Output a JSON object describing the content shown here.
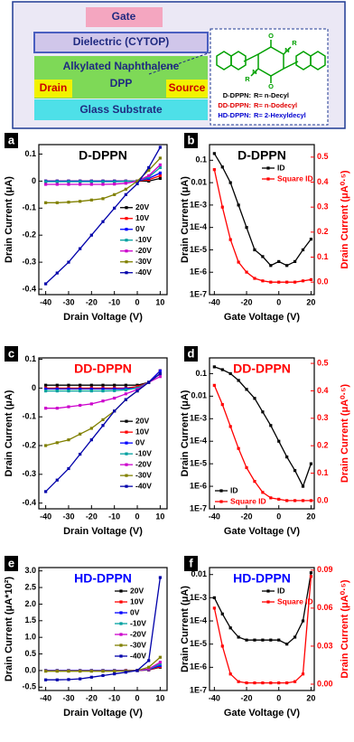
{
  "diagram": {
    "gate": "Gate",
    "dielectric": "Dielectric (CYTOP)",
    "semiconductor_1": "Alkylated Naphthalene",
    "semiconductor_2": "DPP",
    "drain": "Drain",
    "source": "Source",
    "substrate": "Glass Substrate",
    "atoms": {
      "o_top": "O",
      "o_bottom": "O",
      "n_top": "N",
      "n_bottom": "N",
      "r_top": "R",
      "r_bottom": "R"
    },
    "key": [
      {
        "name": "D-DPPN:",
        "r": "R= n-Decyl"
      },
      {
        "name": "DD-DPPN:",
        "r": "R= n-Dodecyl"
      },
      {
        "name": "HD-DPPN:",
        "r": "R= 2-Hexyldecyl"
      }
    ]
  },
  "chart_data": [
    {
      "type": "line",
      "label": "a",
      "title": "D-DPPN",
      "title_color": "#000000",
      "xlabel": "Drain Voltage (V)",
      "ylabel": "Drain Current (μA)",
      "x": [
        -40,
        -35,
        -30,
        -25,
        -20,
        -15,
        -10,
        -5,
        0,
        5,
        10
      ],
      "xlim": [
        -43,
        13
      ],
      "xticks": [
        -40,
        -30,
        -20,
        -10,
        0,
        10
      ],
      "ylim": [
        -0.42,
        0.135
      ],
      "yticks": [
        -0.4,
        -0.3,
        -0.2,
        -0.1,
        0.0,
        0.1
      ],
      "legend": "right",
      "series": [
        {
          "name": "20V",
          "color": "#000000",
          "values": [
            0,
            0,
            0,
            0,
            0,
            0,
            0,
            0,
            0,
            0,
            0.01
          ]
        },
        {
          "name": "10V",
          "color": "#ff0000",
          "values": [
            0,
            0,
            0,
            0,
            0,
            0,
            0,
            0,
            0,
            0.005,
            0.02
          ]
        },
        {
          "name": "0V",
          "color": "#0000ff",
          "values": [
            0,
            0,
            0,
            0,
            0,
            0,
            0,
            0,
            0,
            0.01,
            0.03
          ]
        },
        {
          "name": "-10V",
          "color": "#00a0a0",
          "values": [
            -0.002,
            -0.002,
            -0.002,
            -0.002,
            -0.002,
            -0.002,
            -0.002,
            -0.001,
            0,
            0.015,
            0.05
          ]
        },
        {
          "name": "-20V",
          "color": "#cc00cc",
          "values": [
            -0.012,
            -0.012,
            -0.012,
            -0.012,
            -0.012,
            -0.012,
            -0.011,
            -0.008,
            0,
            0.02,
            0.06
          ]
        },
        {
          "name": "-30V",
          "color": "#808000",
          "values": [
            -0.08,
            -0.08,
            -0.078,
            -0.075,
            -0.07,
            -0.065,
            -0.05,
            -0.03,
            0,
            0.04,
            0.085
          ]
        },
        {
          "name": "-40V",
          "color": "#0000aa",
          "values": [
            -0.38,
            -0.34,
            -0.3,
            -0.25,
            -0.2,
            -0.15,
            -0.1,
            -0.05,
            -0.01,
            0.05,
            0.125
          ]
        }
      ]
    },
    {
      "type": "line",
      "label": "b",
      "title": "D-DPPN",
      "title_color": "#000000",
      "xlabel": "Gate Voltage (V)",
      "ylabel": "Drain Current (μA)",
      "y2label": "Drain Current (μA⁰·⁵)",
      "x": [
        -40,
        -35,
        -30,
        -25,
        -20,
        -15,
        -10,
        -5,
        0,
        5,
        10,
        15,
        20
      ],
      "xlim": [
        -43,
        22
      ],
      "xticks": [
        -40,
        -20,
        0,
        20
      ],
      "ylog": true,
      "ylim": [
        1e-07,
        0.5
      ],
      "yticks": [
        {
          "value": 1e-07,
          "label": "1E-7"
        },
        {
          "value": 1e-06,
          "label": "1E-6"
        },
        {
          "value": 1e-05,
          "label": "1E-5"
        },
        {
          "value": 0.0001,
          "label": "1E-4"
        },
        {
          "value": 0.001,
          "label": "1E-3"
        },
        0.01,
        0.1
      ],
      "y2lim": [
        -0.05,
        0.55
      ],
      "y2ticks": [
        {
          "value": 0,
          "label": "0.0"
        },
        0.1,
        0.2,
        0.3,
        0.4,
        0.5
      ],
      "legend": "top-right",
      "series": [
        {
          "name": "ID",
          "color": "#000000",
          "values": [
            0.2,
            0.05,
            0.01,
            0.001,
            0.0001,
            1e-05,
            5e-06,
            2e-06,
            3e-06,
            2e-06,
            3e-06,
            1e-05,
            3e-05
          ]
        },
        {
          "name": "Square ID",
          "color": "#ff0000",
          "axis": "y2",
          "values": [
            0.45,
            0.3,
            0.17,
            0.08,
            0.04,
            0.015,
            0.005,
            0,
            0,
            0,
            0,
            0.005,
            0.01
          ]
        }
      ]
    },
    {
      "type": "line",
      "label": "c",
      "title": "DD-DPPN",
      "title_color": "#ff0000",
      "xlabel": "Drain Voltage (V)",
      "ylabel": "Drain Current (μA)",
      "x": [
        -40,
        -35,
        -30,
        -25,
        -20,
        -15,
        -10,
        -5,
        0,
        5,
        10
      ],
      "xlim": [
        -43,
        13
      ],
      "xticks": [
        -40,
        -30,
        -20,
        -10,
        0,
        10
      ],
      "ylim": [
        -0.42,
        0.105
      ],
      "yticks": [
        -0.4,
        -0.3,
        -0.2,
        -0.1,
        0.0,
        0.1
      ],
      "legend": "right",
      "series": [
        {
          "name": "20V",
          "color": "#000000",
          "values": [
            0.01,
            0.01,
            0.01,
            0.01,
            0.01,
            0.01,
            0.01,
            0.01,
            0.01,
            0.02,
            0.06
          ]
        },
        {
          "name": "10V",
          "color": "#ff0000",
          "values": [
            0,
            0,
            0,
            0,
            0,
            0,
            0,
            0,
            0.005,
            0.02,
            0.06
          ]
        },
        {
          "name": "0V",
          "color": "#0000ff",
          "values": [
            -0.003,
            -0.003,
            -0.003,
            -0.003,
            -0.003,
            -0.003,
            -0.003,
            -0.002,
            0,
            0.02,
            0.06
          ]
        },
        {
          "name": "-10V",
          "color": "#00a0a0",
          "values": [
            -0.01,
            -0.01,
            -0.01,
            -0.01,
            -0.01,
            -0.01,
            -0.009,
            -0.006,
            0,
            0.02,
            0.05
          ]
        },
        {
          "name": "-20V",
          "color": "#cc00cc",
          "values": [
            -0.07,
            -0.07,
            -0.065,
            -0.06,
            -0.055,
            -0.045,
            -0.035,
            -0.02,
            -0.005,
            0.02,
            0.04
          ]
        },
        {
          "name": "-30V",
          "color": "#808000",
          "values": [
            -0.2,
            -0.19,
            -0.18,
            -0.16,
            -0.14,
            -0.11,
            -0.08,
            -0.04,
            -0.01,
            0.02,
            0.05
          ]
        },
        {
          "name": "-40V",
          "color": "#0000aa",
          "values": [
            -0.36,
            -0.32,
            -0.28,
            -0.23,
            -0.18,
            -0.13,
            -0.08,
            -0.04,
            -0.01,
            0.02,
            0.05
          ]
        }
      ]
    },
    {
      "type": "line",
      "label": "d",
      "title": "DD-DPPN",
      "title_color": "#ff0000",
      "xlabel": "Gate Voltage (V)",
      "ylabel": "Drain Current (μA)",
      "y2label": "Drain Current (μA⁰·⁵)",
      "x": [
        -40,
        -35,
        -30,
        -25,
        -20,
        -15,
        -10,
        -5,
        0,
        5,
        10,
        15,
        20
      ],
      "xlim": [
        -43,
        22
      ],
      "xticks": [
        -40,
        -20,
        0,
        20
      ],
      "ylog": true,
      "ylim": [
        1e-07,
        0.5
      ],
      "yticks": [
        {
          "value": 1e-07,
          "label": "1E-7"
        },
        {
          "value": 1e-06,
          "label": "1E-6"
        },
        {
          "value": 1e-05,
          "label": "1E-5"
        },
        {
          "value": 0.0001,
          "label": "1E-4"
        },
        {
          "value": 0.001,
          "label": "1E-3"
        },
        0.01,
        0.1
      ],
      "y2lim": [
        -0.03,
        0.52
      ],
      "y2ticks": [
        {
          "value": 0,
          "label": "0.0"
        },
        0.1,
        0.2,
        0.3,
        0.4,
        0.5
      ],
      "legend": "bottom-left",
      "series": [
        {
          "name": "ID",
          "color": "#000000",
          "values": [
            0.2,
            0.15,
            0.1,
            0.05,
            0.02,
            0.008,
            0.002,
            0.0005,
            0.0001,
            2e-05,
            5e-06,
            1e-06,
            1e-05
          ]
        },
        {
          "name": "Square ID",
          "color": "#ff0000",
          "axis": "y2",
          "values": [
            0.42,
            0.35,
            0.27,
            0.19,
            0.12,
            0.07,
            0.03,
            0.01,
            0.005,
            0,
            0,
            0,
            0
          ]
        }
      ]
    },
    {
      "type": "line",
      "label": "e",
      "title": "HD-DPPN",
      "title_color": "#0000ff",
      "xlabel": "Drain Voltage (V)",
      "ylabel": "Drain Current (μA*10²)",
      "x": [
        -40,
        -35,
        -30,
        -25,
        -20,
        -15,
        -10,
        -5,
        0,
        5,
        10
      ],
      "xlim": [
        -43,
        13
      ],
      "xticks": [
        -40,
        -30,
        -20,
        -10,
        0,
        10
      ],
      "ylim": [
        -0.6,
        3.1
      ],
      "yticks": [
        -0.5,
        {
          "value": 0,
          "label": "0.0"
        },
        0.5,
        {
          "value": 1,
          "label": "1.0"
        },
        1.5,
        {
          "value": 2,
          "label": "2.0"
        },
        2.5,
        {
          "value": 3,
          "label": "3.0"
        }
      ],
      "legend": "top-right",
      "series": [
        {
          "name": "20V",
          "color": "#000000",
          "values": [
            0,
            0,
            0,
            0,
            0,
            0,
            0,
            0,
            0,
            0.02,
            0.1
          ]
        },
        {
          "name": "10V",
          "color": "#ff0000",
          "values": [
            0,
            0,
            0,
            0,
            0,
            0,
            0,
            0,
            0,
            0.02,
            0.12
          ]
        },
        {
          "name": "0V",
          "color": "#0000ff",
          "values": [
            0,
            0,
            0,
            0,
            0,
            0,
            0,
            0,
            0,
            0.03,
            0.15
          ]
        },
        {
          "name": "-10V",
          "color": "#00a0a0",
          "values": [
            0,
            0,
            0,
            0,
            0,
            0,
            0,
            0,
            0,
            0.04,
            0.2
          ]
        },
        {
          "name": "-20V",
          "color": "#cc00cc",
          "values": [
            -0.01,
            -0.01,
            -0.01,
            -0.01,
            -0.01,
            -0.01,
            -0.01,
            0,
            0,
            0.05,
            0.25
          ]
        },
        {
          "name": "-30V",
          "color": "#808000",
          "values": [
            -0.02,
            -0.02,
            -0.02,
            -0.02,
            -0.02,
            -0.02,
            -0.02,
            -0.01,
            0,
            0.1,
            0.4
          ]
        },
        {
          "name": "-40V",
          "color": "#0000aa",
          "values": [
            -0.28,
            -0.28,
            -0.27,
            -0.25,
            -0.2,
            -0.15,
            -0.1,
            -0.05,
            0,
            0.3,
            2.8
          ]
        }
      ]
    },
    {
      "type": "line",
      "label": "f",
      "title": "HD-DPPN",
      "title_color": "#0000ff",
      "xlabel": "Gate Voltage (V)",
      "ylabel": "Drain Current (μA)",
      "y2label": "Drain Current (μA⁰·⁵)",
      "x": [
        -40,
        -35,
        -30,
        -25,
        -20,
        -15,
        -10,
        -5,
        0,
        5,
        10,
        15,
        20
      ],
      "xlim": [
        -43,
        22
      ],
      "xticks": [
        -40,
        -20,
        0,
        20
      ],
      "ylog": true,
      "ylim": [
        1e-07,
        0.02
      ],
      "yticks": [
        {
          "value": 1e-07,
          "label": "1E-7"
        },
        {
          "value": 1e-06,
          "label": "1E-6"
        },
        {
          "value": 1e-05,
          "label": "1E-5"
        },
        {
          "value": 0.0001,
          "label": "1E-4"
        },
        {
          "value": 0.001,
          "label": "1E-3"
        },
        0.01
      ],
      "y2lim": [
        -0.005,
        0.092
      ],
      "y2ticks": [
        {
          "value": 0,
          "label": "0.00"
        },
        0.03,
        0.06,
        0.09
      ],
      "legend": "top-right",
      "series": [
        {
          "name": "ID",
          "color": "#000000",
          "values": [
            0.001,
            0.0002,
            5e-05,
            2e-05,
            1.5e-05,
            1.5e-05,
            1.5e-05,
            1.5e-05,
            1.5e-05,
            1e-05,
            2e-05,
            0.0001,
            0.012
          ]
        },
        {
          "name": "Square ID",
          "color": "#ff0000",
          "axis": "y2",
          "values": [
            0.06,
            0.03,
            0.008,
            0.002,
            0.001,
            0.001,
            0.001,
            0.001,
            0.001,
            0.001,
            0.002,
            0.008,
            0.085
          ]
        }
      ]
    }
  ]
}
